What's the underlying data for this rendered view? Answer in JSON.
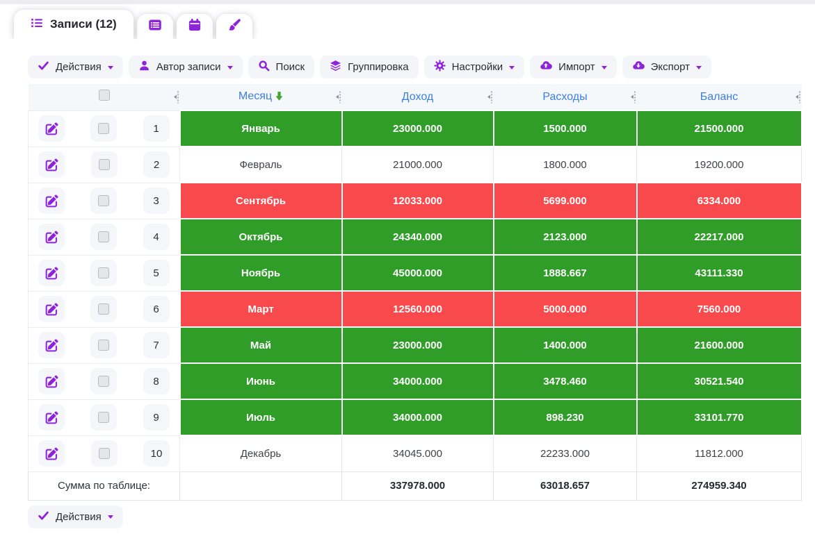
{
  "theme": {
    "purple": "#8e24d9",
    "header_blue": "#3d7ee0",
    "green": "#2f9d27",
    "red": "#f8494d"
  },
  "tabs": {
    "records": {
      "label": "Записи (12)",
      "icon": "list-icon"
    },
    "icon_tabs": [
      {
        "icon": "card-list-icon"
      },
      {
        "icon": "calendar-icon"
      },
      {
        "icon": "brush-icon"
      }
    ]
  },
  "toolbar": {
    "buttons": [
      {
        "label": "Действия",
        "icon": "check-icon",
        "caret": true
      },
      {
        "label": "Автор записи",
        "icon": "user-icon",
        "caret": true
      },
      {
        "label": "Поиск",
        "icon": "search-icon",
        "caret": false
      },
      {
        "label": "Группировка",
        "icon": "layers-icon",
        "caret": false
      },
      {
        "label": "Настройки",
        "icon": "gear-icon",
        "caret": true
      },
      {
        "label": "Импорт",
        "icon": "cloud-upload-icon",
        "caret": true
      },
      {
        "label": "Экспорт",
        "icon": "cloud-download-icon",
        "caret": true
      }
    ]
  },
  "table": {
    "columns": {
      "month": "Месяц",
      "income": "Доход",
      "expenses": "Расходы",
      "balance": "Баланс"
    },
    "sort": {
      "column": "Месяц",
      "indicator": "green-down-arrow"
    },
    "rows": [
      {
        "num": "1",
        "month": "Январь",
        "income": "23000.000",
        "expenses": "1500.000",
        "balance": "21500.000",
        "state": "green"
      },
      {
        "num": "2",
        "month": "Февраль",
        "income": "21000.000",
        "expenses": "1800.000",
        "balance": "19200.000",
        "state": "none"
      },
      {
        "num": "3",
        "month": "Сентябрь",
        "income": "12033.000",
        "expenses": "5699.000",
        "balance": "6334.000",
        "state": "red"
      },
      {
        "num": "4",
        "month": "Октябрь",
        "income": "24340.000",
        "expenses": "2123.000",
        "balance": "22217.000",
        "state": "green"
      },
      {
        "num": "5",
        "month": "Ноябрь",
        "income": "45000.000",
        "expenses": "1888.667",
        "balance": "43111.330",
        "state": "green"
      },
      {
        "num": "6",
        "month": "Март",
        "income": "12560.000",
        "expenses": "5000.000",
        "balance": "7560.000",
        "state": "red"
      },
      {
        "num": "7",
        "month": "Май",
        "income": "23000.000",
        "expenses": "1400.000",
        "balance": "21600.000",
        "state": "green"
      },
      {
        "num": "8",
        "month": "Июнь",
        "income": "34000.000",
        "expenses": "3478.460",
        "balance": "30521.540",
        "state": "green"
      },
      {
        "num": "9",
        "month": "Июль",
        "income": "34000.000",
        "expenses": "898.230",
        "balance": "33101.770",
        "state": "green"
      },
      {
        "num": "10",
        "month": "Декабрь",
        "income": "34045.000",
        "expenses": "22233.000",
        "balance": "11812.000",
        "state": "none"
      }
    ],
    "footer": {
      "label": "Сумма по таблице:",
      "income": "337978.000",
      "expenses": "63018.657",
      "balance": "274959.340"
    }
  },
  "footer_toolbar": {
    "actions": {
      "label": "Действия",
      "icon": "check-icon",
      "caret": true
    }
  }
}
